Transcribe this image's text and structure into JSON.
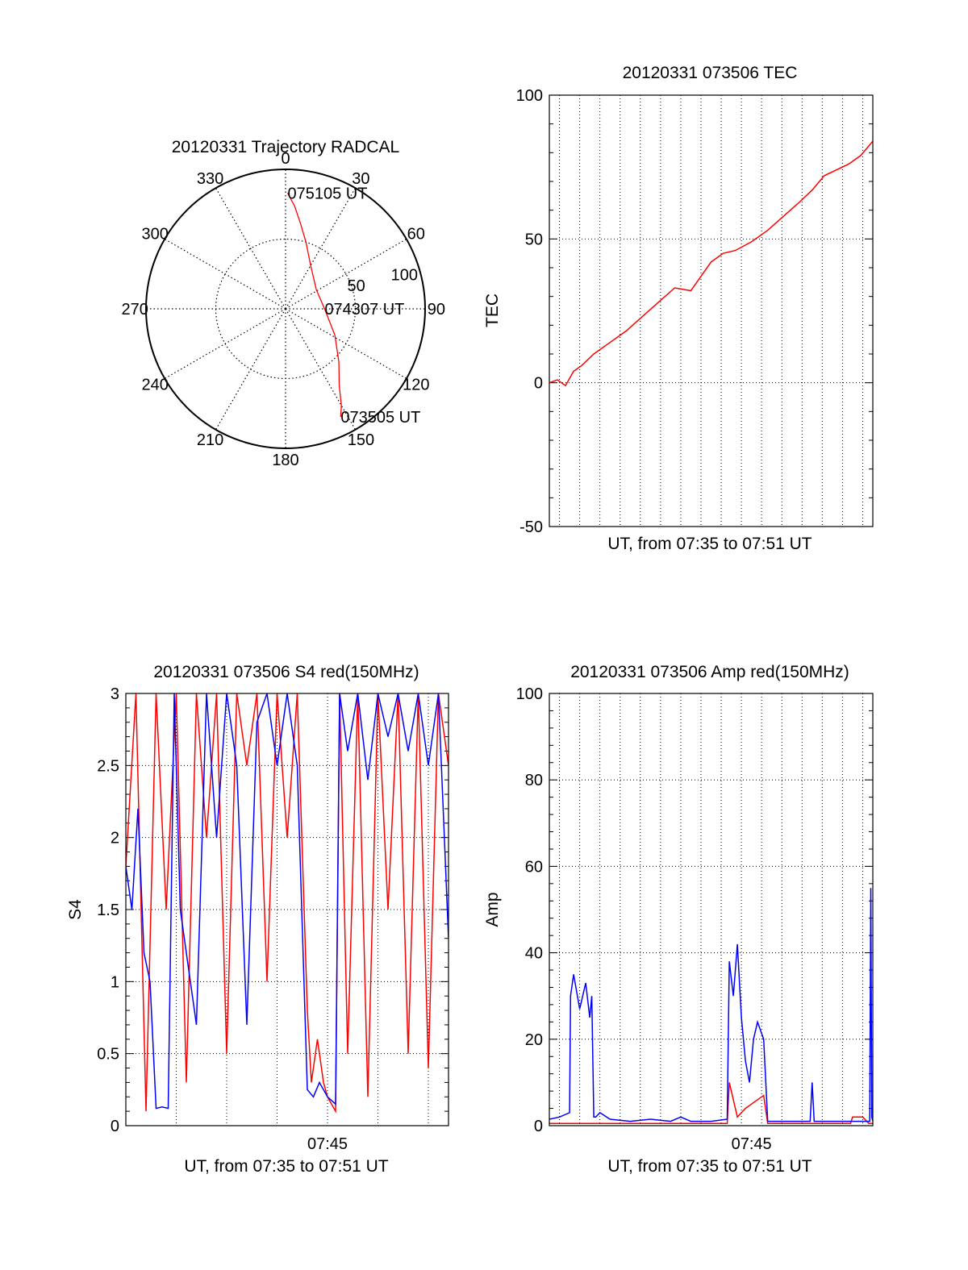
{
  "colors": {
    "red": "#ff0000",
    "blue": "#0000ff",
    "axis": "#000000",
    "grid": "#000000"
  },
  "chart_data": [
    {
      "type": "polar",
      "title": "20120331 Trajectory RADCAL",
      "angle_ticks": [
        {
          "deg": 0,
          "label": "0"
        },
        {
          "deg": 30,
          "label": "30"
        },
        {
          "deg": 60,
          "label": "60"
        },
        {
          "deg": 90,
          "label": "90"
        },
        {
          "deg": 120,
          "label": "120"
        },
        {
          "deg": 150,
          "label": "150"
        },
        {
          "deg": 180,
          "label": "180"
        },
        {
          "deg": 210,
          "label": "210"
        },
        {
          "deg": 240,
          "label": "240"
        },
        {
          "deg": 270,
          "label": "270"
        },
        {
          "deg": 300,
          "label": "300"
        },
        {
          "deg": 330,
          "label": "330"
        }
      ],
      "radial_ticks": [
        {
          "value": 50,
          "label": "50"
        },
        {
          "value": 100,
          "label": "100"
        }
      ],
      "rmax": 100,
      "trajectory": [
        {
          "az": 1,
          "r": 83
        },
        {
          "az": 5,
          "r": 74
        },
        {
          "az": 10,
          "r": 62
        },
        {
          "az": 17,
          "r": 50
        },
        {
          "az": 30,
          "r": 36
        },
        {
          "az": 58,
          "r": 26
        },
        {
          "az": 90,
          "r": 28
        },
        {
          "az": 118,
          "r": 40
        },
        {
          "az": 135,
          "r": 54
        },
        {
          "az": 145,
          "r": 67
        },
        {
          "az": 150,
          "r": 80
        },
        {
          "az": 153,
          "r": 87
        }
      ],
      "annotations": [
        {
          "text": "075105 UT",
          "az": 1,
          "r": 83
        },
        {
          "text": "074307 UT",
          "az": 90,
          "r": 28
        },
        {
          "text": "073505 UT",
          "az": 153,
          "r": 87
        }
      ]
    },
    {
      "type": "line",
      "title": "20120331 073506 TEC",
      "xlabel": "UT, from 07:35 to 07:51 UT",
      "ylabel": "TEC",
      "xlim": [
        0,
        16
      ],
      "ylim": [
        -50,
        100
      ],
      "yticks": [
        -50,
        0,
        50,
        100
      ],
      "xgrid": [
        0.5,
        1.5,
        2.5,
        3.5,
        4.5,
        5.5,
        6.5,
        7.5,
        8.5,
        9.5,
        10.5,
        11.5,
        12.5,
        13.5,
        14.5,
        15.5
      ],
      "grid": true,
      "series": [
        {
          "color": "red",
          "x": [
            0,
            0.4,
            0.8,
            1.2,
            1.6,
            2.2,
            3.0,
            3.8,
            4.6,
            5.4,
            6.2,
            7.0,
            7.5,
            8.0,
            8.6,
            9.2,
            10.0,
            10.8,
            11.6,
            12.4,
            13.0,
            13.6,
            14.2,
            14.8,
            15.4,
            16.0
          ],
          "y": [
            0,
            1,
            -1,
            4,
            6,
            10,
            14,
            18,
            23,
            28,
            33,
            32,
            37,
            42,
            45,
            46,
            49,
            53,
            58,
            63,
            67,
            72,
            74,
            76,
            79,
            84
          ]
        }
      ]
    },
    {
      "type": "line",
      "title": "20120331 073506 S4 red(150MHz)",
      "xlabel": "UT, from 07:35 to 07:51 UT",
      "ylabel": "S4",
      "xlim": [
        0,
        16
      ],
      "ylim": [
        0,
        3
      ],
      "yticks": [
        0,
        0.5,
        1,
        1.5,
        2,
        2.5,
        3
      ],
      "xticks": [
        {
          "x": 10,
          "label": "07:45"
        }
      ],
      "xgrid": [
        2.5,
        5,
        7.5,
        10,
        12.5,
        15
      ],
      "grid": true,
      "series": [
        {
          "color": "red",
          "x": [
            0,
            0.5,
            1.0,
            1.5,
            2.0,
            2.5,
            3.0,
            3.5,
            4.0,
            4.5,
            5.0,
            5.5,
            6.0,
            6.5,
            7.0,
            7.5,
            8.0,
            8.5,
            9.0,
            9.2,
            9.5,
            9.8,
            10.0,
            10.4,
            10.6,
            11.0,
            11.5,
            12.0,
            12.5,
            13.0,
            13.5,
            14.0,
            14.5,
            15.0,
            15.5,
            16.0
          ],
          "y": [
            1.8,
            3.0,
            0.1,
            3.0,
            1.5,
            3.0,
            0.3,
            3.0,
            2.0,
            3.0,
            0.5,
            3.0,
            2.5,
            3.0,
            1.0,
            3.0,
            2.0,
            3.0,
            0.8,
            0.3,
            0.6,
            0.3,
            0.2,
            0.1,
            3.0,
            0.5,
            3.0,
            0.2,
            3.0,
            1.5,
            3.0,
            0.5,
            3.0,
            0.4,
            3.0,
            2.5
          ]
        },
        {
          "color": "blue",
          "x": [
            0,
            0.3,
            0.6,
            0.9,
            1.2,
            1.5,
            1.8,
            2.1,
            2.4,
            2.7,
            3.0,
            3.5,
            4.0,
            4.5,
            5.0,
            5.5,
            6.0,
            6.5,
            7.0,
            7.5,
            8.0,
            8.5,
            9.0,
            9.3,
            9.6,
            10.0,
            10.4,
            10.6,
            11.0,
            11.5,
            12.0,
            12.5,
            13.0,
            13.5,
            14.0,
            14.5,
            15.0,
            15.5,
            16.0
          ],
          "y": [
            1.8,
            1.5,
            2.2,
            1.2,
            1.0,
            0.12,
            0.13,
            0.12,
            3.0,
            1.5,
            1.2,
            0.7,
            3.0,
            2.0,
            3.0,
            2.5,
            0.7,
            2.8,
            3.0,
            2.5,
            3.0,
            2.5,
            0.25,
            0.2,
            0.3,
            0.2,
            0.15,
            3.0,
            2.6,
            3.0,
            2.4,
            3.0,
            2.7,
            3.0,
            2.6,
            3.0,
            2.5,
            3.0,
            1.3
          ]
        }
      ]
    },
    {
      "type": "line",
      "title": "20120331 073506 Amp red(150MHz)",
      "xlabel": "UT, from 07:35 to 07:51 UT",
      "ylabel": "Amp",
      "xlim": [
        0,
        16
      ],
      "ylim": [
        0,
        100
      ],
      "yticks": [
        0,
        20,
        40,
        60,
        80,
        100
      ],
      "xticks": [
        {
          "x": 10,
          "label": "07:45"
        }
      ],
      "xgrid": [
        0.5,
        1.5,
        2.5,
        3.5,
        4.5,
        5.5,
        6.5,
        7.5,
        8.5,
        9.5,
        10.5,
        11.5,
        12.5,
        13.5,
        14.5,
        15.5
      ],
      "grid": true,
      "series": [
        {
          "color": "red",
          "x": [
            0,
            8.8,
            8.9,
            9.1,
            9.3,
            9.5,
            9.7,
            10.0,
            10.3,
            10.6,
            10.8,
            14.9,
            15.0,
            15.5,
            15.8,
            16.0
          ],
          "y": [
            0.5,
            0.5,
            10,
            6,
            2,
            3,
            4,
            5,
            6,
            7,
            0.5,
            0.5,
            2,
            2,
            0.5,
            0.5
          ]
        },
        {
          "color": "blue",
          "x": [
            0,
            0.5,
            1.0,
            1.05,
            1.2,
            1.5,
            1.8,
            2.0,
            2.1,
            2.2,
            2.3,
            2.5,
            3.0,
            4.0,
            5.0,
            6.0,
            6.5,
            7.0,
            8.0,
            8.8,
            8.9,
            9.1,
            9.3,
            9.5,
            9.7,
            9.9,
            10.1,
            10.3,
            10.6,
            10.8,
            11.0,
            12.0,
            12.9,
            13.0,
            13.1,
            13.5,
            14.5,
            15.5,
            15.85,
            15.9,
            15.95,
            16.0
          ],
          "y": [
            1.5,
            2,
            3,
            30,
            35,
            27,
            33,
            25,
            30,
            2,
            2,
            3,
            1.5,
            1,
            1.5,
            1,
            2,
            1,
            1,
            1.5,
            38,
            30,
            42,
            25,
            15,
            10,
            20,
            24,
            20,
            1,
            1,
            1,
            1,
            10,
            1,
            1,
            1,
            1,
            1,
            55,
            2,
            1
          ]
        }
      ]
    }
  ]
}
